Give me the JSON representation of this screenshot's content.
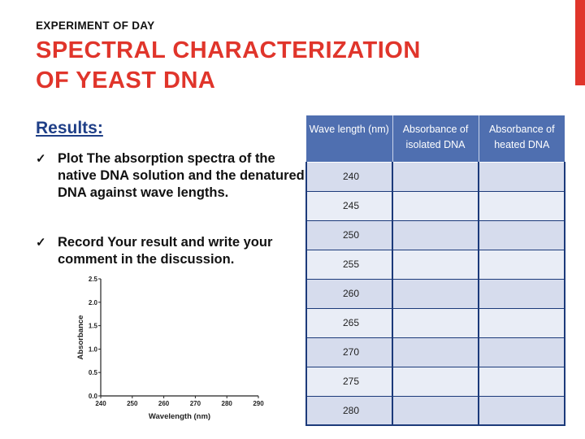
{
  "kicker": "EXPERIMENT OF DAY",
  "title_line1": "SPECTRAL CHARACTERIZATION",
  "title_line2": "OF YEAST DNA",
  "results_heading": "Results:",
  "bullets": [
    {
      "check": "✓",
      "text": "Plot The absorption spectra of the native DNA solution and the denatured DNA against wave lengths."
    },
    {
      "check": "✓",
      "text": "Record Your result and write your comment in the discussion."
    }
  ],
  "accent_color": "#e0352b",
  "heading_color": "#1f3f87",
  "table": {
    "headers": [
      "Wave length (nm)",
      "Absorbance of isolated DNA",
      "Absorbance of heated DNA"
    ],
    "rows": [
      [
        "240",
        "",
        ""
      ],
      [
        "245",
        "",
        ""
      ],
      [
        "250",
        "",
        ""
      ],
      [
        "255",
        "",
        ""
      ],
      [
        "260",
        "",
        ""
      ],
      [
        "265",
        "",
        ""
      ],
      [
        "270",
        "",
        ""
      ],
      [
        "275",
        "",
        ""
      ],
      [
        "280",
        "",
        ""
      ]
    ],
    "header_color": "#4f6fb0",
    "row_color_a": "#d6dced",
    "row_color_b": "#e9edf6"
  },
  "chart_data": {
    "type": "line",
    "title": "",
    "xlabel": "Wavelength (nm)",
    "ylabel": "Absorbance",
    "xlim": [
      240,
      290
    ],
    "ylim": [
      0.0,
      2.5
    ],
    "x_ticks": [
      "240",
      "250",
      "260",
      "270",
      "280",
      "290"
    ],
    "y_ticks": [
      "0.0",
      "0.5",
      "1.0",
      "1.5",
      "2.0",
      "2.5"
    ],
    "grid": false,
    "series": []
  }
}
